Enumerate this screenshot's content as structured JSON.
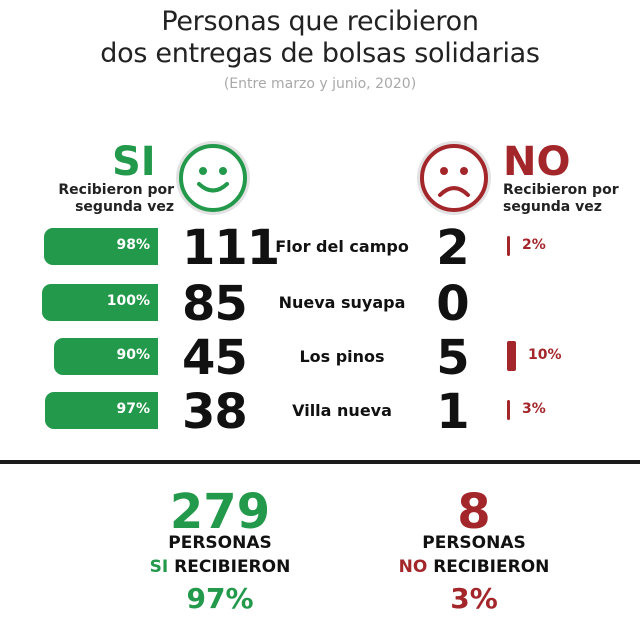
{
  "title_line1": "Personas que recibieron",
  "title_line2": "dos entregas de bolsas solidarias",
  "subtitle": "(Entre marzo y junio, 2020)",
  "yes": {
    "word": "SI",
    "caption_line1": "Recibieron por",
    "caption_line2": "segunda vez",
    "face_icon": "smiley-face-icon",
    "color": "#23994b"
  },
  "no": {
    "word": "NO",
    "caption_line1": "Recibieron por",
    "caption_line2": "segunda vez",
    "face_icon": "sad-face-icon",
    "color": "#a3262b"
  },
  "chart_data": {
    "type": "bar",
    "categories": [
      "Flor del campo",
      "Nueva suyapa",
      "Los pinos",
      "Villa nueva"
    ],
    "series": [
      {
        "counts": [
          111,
          85,
          45,
          38
        ],
        "percent_values": [
          98,
          100,
          90,
          97
        ],
        "percent_labels": [
          "98%",
          "100%",
          "90%",
          "97%"
        ]
      },
      {
        "counts": [
          2,
          0,
          5,
          1
        ],
        "percent_values": [
          2,
          0,
          10,
          3
        ],
        "percent_labels": [
          "2%",
          "",
          "10%",
          "3%"
        ]
      }
    ]
  },
  "summary": {
    "yes_total": "279",
    "yes_line1": "PERSONAS",
    "yes_line2_emph": "SI",
    "yes_line2_rest": "RECIBIERON",
    "yes_pct": "97%",
    "no_total": "8",
    "no_line1": "PERSONAS",
    "no_line2_emph": "NO",
    "no_line2_rest": "RECIBIERON",
    "no_pct": "3%"
  }
}
